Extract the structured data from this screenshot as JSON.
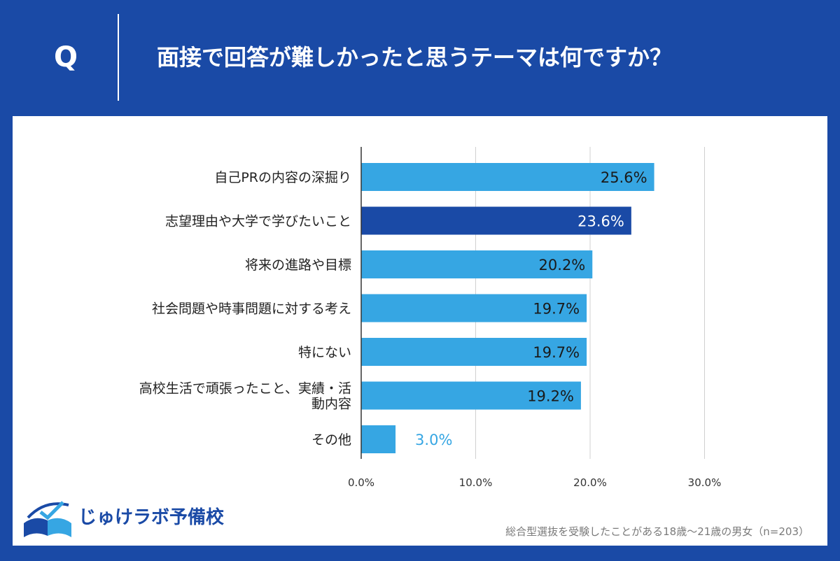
{
  "header": {
    "q_label": "Q",
    "question": "面接で回答が難しかったと思うテーマは何ですか？"
  },
  "chart_data": {
    "type": "bar",
    "orientation": "horizontal",
    "categories": [
      "自己PRの内容の深掘り",
      "志望理由や大学で学びたいこと",
      "将来の進路や目標",
      "社会問題や時事問題に対する考え",
      "特にない",
      "高校生活で頑張ったこと、実績・活\n動内容",
      "その他"
    ],
    "values": [
      25.6,
      23.6,
      20.2,
      19.7,
      19.7,
      19.2,
      3.0
    ],
    "value_labels": [
      "25.6%",
      "23.6%",
      "20.2%",
      "19.7%",
      "19.7%",
      "19.2%",
      "3.0%"
    ],
    "xlim": [
      0,
      30
    ],
    "xticks": [
      0,
      10,
      20,
      30
    ],
    "xtick_labels": [
      "0.0%",
      "10.0%",
      "20.0%",
      "30.0%"
    ],
    "grid": true,
    "colors": {
      "bar": "#36a6e3",
      "highlight_bar": "#1a4aa6",
      "highlight_index": 1,
      "label_inside": "#1a1a1a",
      "label_highlight": "#ffffff",
      "label_outside": "#36a6e3",
      "grid": "#d0d0d0",
      "axis": "#333333"
    }
  },
  "logo": {
    "text": "じゅけラボ予備校",
    "icon": "open-book-icon"
  },
  "footnote": "総合型選抜を受験したことがある18歳～21歳の男女（n=203）"
}
